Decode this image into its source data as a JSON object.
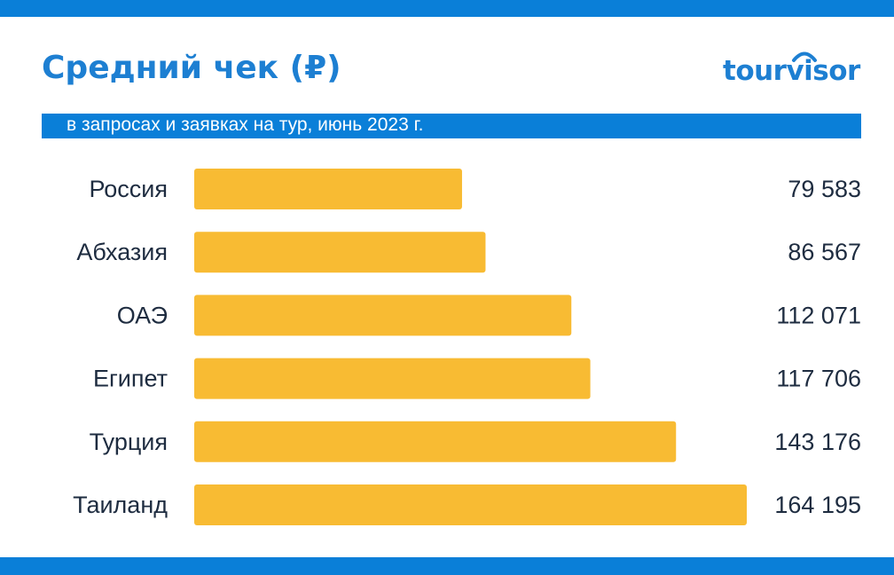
{
  "header": {
    "title": "Средний чек (₽)",
    "subtitle": "в запросах и заявках на тур, июнь 2023 г.",
    "logo": "tourvisor"
  },
  "colors": {
    "brand_blue": "#0a7fd8",
    "title_blue": "#1d7fd2",
    "bar": "#f8bb33",
    "text": "#1e2c40"
  },
  "chart_data": {
    "type": "bar",
    "orientation": "horizontal",
    "categories": [
      "Россия",
      "Абхазия",
      "ОАЭ",
      "Египет",
      "Турция",
      "Таиланд"
    ],
    "values": [
      79583,
      86567,
      112071,
      117706,
      143176,
      164195
    ],
    "value_labels": [
      "79 583",
      "86 567",
      "112 071",
      "117 706",
      "143 176",
      "164 195"
    ],
    "title": "Средний чек (₽)",
    "subtitle": "в запросах и заявках на тур, июнь 2023 г.",
    "grid": false,
    "legend": "none"
  }
}
